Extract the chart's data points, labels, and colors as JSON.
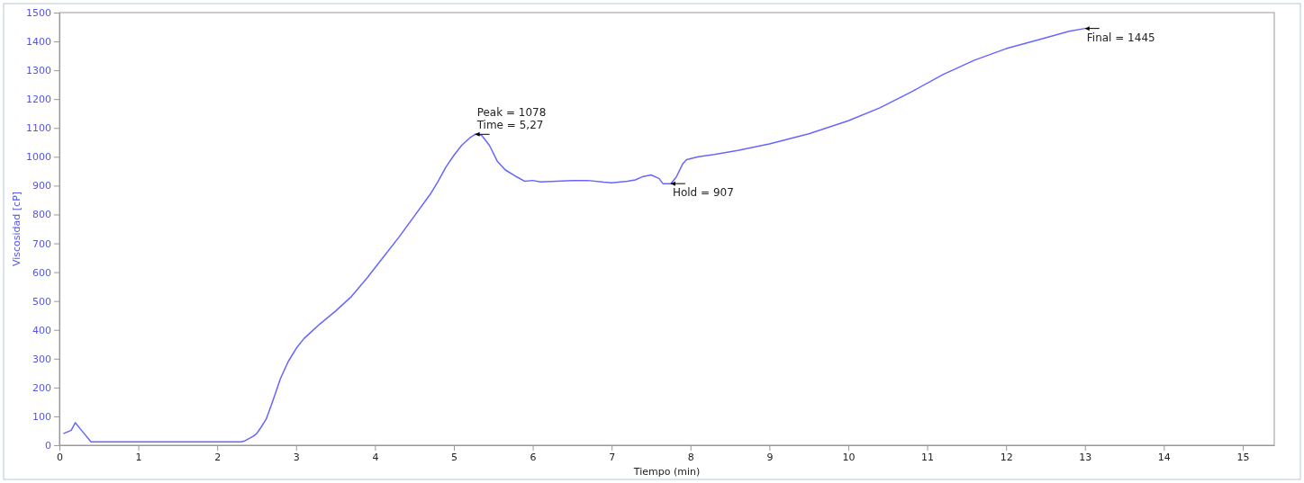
{
  "chart_data": {
    "type": "line",
    "xlabel": "Tiempo  (min)",
    "ylabel": "Viscosidad [cP]",
    "xlim": [
      0,
      15.4
    ],
    "xticks": [
      0,
      1,
      2,
      3,
      4,
      5,
      6,
      7,
      8,
      9,
      10,
      11,
      12,
      13,
      14,
      15
    ],
    "ylim": [
      0,
      1500
    ],
    "yticks": [
      0,
      100,
      200,
      300,
      400,
      500,
      600,
      700,
      800,
      900,
      1000,
      1100,
      1200,
      1300,
      1400,
      1500
    ],
    "grid": false,
    "marker": "none",
    "line_style": "solid",
    "series": [
      {
        "color": "#6666ff",
        "x": [
          0.05,
          0.15,
          0.2,
          0.27,
          0.4,
          1,
          2,
          2.3,
          2.35,
          2.45,
          2.5,
          2.55,
          2.62,
          2.7,
          2.8,
          2.9,
          3.0,
          3.1,
          3.2,
          3.3,
          3.5,
          3.7,
          3.9,
          4.1,
          4.3,
          4.5,
          4.7,
          4.8,
          4.9,
          5.0,
          5.1,
          5.2,
          5.27,
          5.35,
          5.45,
          5.55,
          5.65,
          5.8,
          5.9,
          6.0,
          6.1,
          6.3,
          6.5,
          6.7,
          6.9,
          7.0,
          7.2,
          7.3,
          7.4,
          7.5,
          7.6,
          7.65,
          7.75,
          7.82,
          7.9,
          7.95,
          8.1,
          8.3,
          8.6,
          9.0,
          9.5,
          10.0,
          10.4,
          10.8,
          11.2,
          11.6,
          12.0,
          12.4,
          12.8,
          13.0
        ],
        "values": [
          40,
          52,
          78,
          55,
          12,
          12,
          12,
          12,
          15,
          30,
          40,
          60,
          90,
          150,
          230,
          290,
          335,
          370,
          395,
          420,
          465,
          515,
          580,
          650,
          720,
          795,
          870,
          915,
          965,
          1005,
          1040,
          1065,
          1078,
          1075,
          1040,
          985,
          955,
          930,
          915,
          918,
          913,
          915,
          918,
          918,
          912,
          910,
          915,
          920,
          932,
          937,
          925,
          907,
          907,
          930,
          975,
          990,
          1000,
          1008,
          1022,
          1045,
          1080,
          1125,
          1170,
          1225,
          1285,
          1335,
          1375,
          1405,
          1435,
          1445
        ]
      }
    ],
    "annotations": [
      {
        "text": "Peak = 1078",
        "x": 5.27,
        "y": 1078
      },
      {
        "text": "Time = 5,27",
        "x": 5.27,
        "y": 1078
      },
      {
        "text": "Hold = 907",
        "x": 7.75,
        "y": 907
      },
      {
        "text": "Final = 1445",
        "x": 13.0,
        "y": 1445
      }
    ]
  }
}
